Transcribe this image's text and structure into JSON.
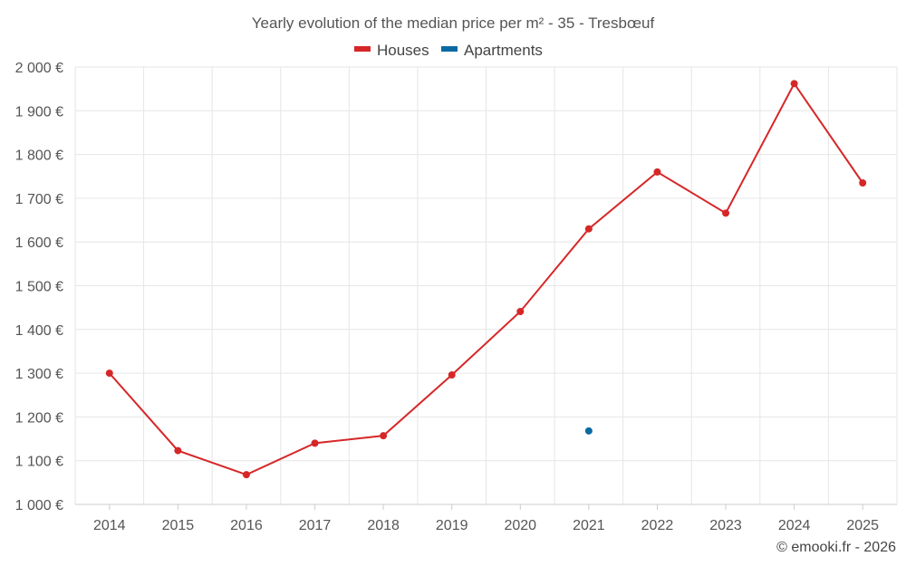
{
  "chart_data": {
    "type": "line",
    "title": "Yearly evolution of the median price per m² - 35 - Tresbœuf",
    "categories": [
      "2014",
      "2015",
      "2016",
      "2017",
      "2018",
      "2019",
      "2020",
      "2021",
      "2022",
      "2023",
      "2024",
      "2025"
    ],
    "series": [
      {
        "name": "Houses",
        "color": "#d62728",
        "values": [
          1300,
          1123,
          1068,
          1140,
          1157,
          1296,
          1441,
          1630,
          1760,
          1666,
          1962,
          1735
        ]
      },
      {
        "name": "Apartments",
        "color": "#0a6aa1",
        "values": [
          null,
          null,
          null,
          null,
          null,
          null,
          null,
          1168,
          null,
          null,
          null,
          null
        ]
      }
    ],
    "ylim": [
      1000,
      2000
    ],
    "yticks": [
      1000,
      1100,
      1200,
      1300,
      1400,
      1500,
      1600,
      1700,
      1800,
      1900,
      2000
    ],
    "ytick_labels": [
      "1 000 €",
      "1 100 €",
      "1 200 €",
      "1 300 €",
      "1 400 €",
      "1 500 €",
      "1 600 €",
      "1 700 €",
      "1 800 €",
      "1 900 €",
      "2 000 €"
    ],
    "legend_position": "top-center",
    "grid": true
  },
  "credit": "© emooki.fr - 2026"
}
